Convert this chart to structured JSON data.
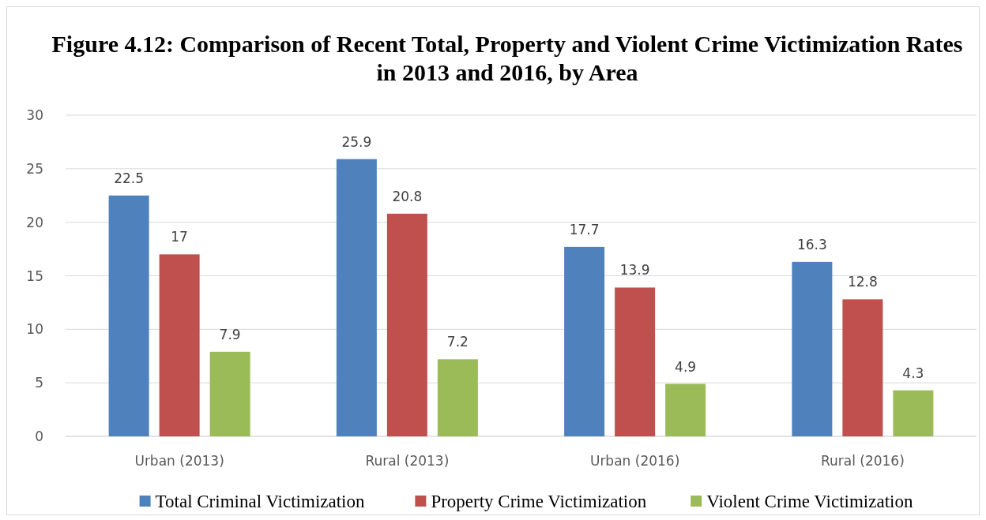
{
  "chart_data": {
    "type": "bar",
    "title": "Figure 4.12: Comparison of Recent Total, Property and Violent Crime Victimization Rates in 2013 and 2016, by Area",
    "categories": [
      "Urban (2013)",
      "Rural (2013)",
      "Urban (2016)",
      "Rural (2016)"
    ],
    "series": [
      {
        "name": "Total Criminal Victimization",
        "color": "#4f81bd",
        "values": [
          22.5,
          25.9,
          17.7,
          16.3
        ]
      },
      {
        "name": "Property Crime Victimization",
        "color": "#c0504d",
        "values": [
          17,
          20.8,
          13.9,
          12.8
        ]
      },
      {
        "name": "Violent Crime Victimization",
        "color": "#9bbb59",
        "values": [
          7.9,
          7.2,
          4.9,
          4.3
        ]
      }
    ],
    "ylim": [
      0,
      30
    ],
    "yticks": [
      0,
      5,
      10,
      15,
      20,
      25,
      30
    ],
    "grid": "y",
    "legend": "bottom",
    "data_labels": true
  }
}
